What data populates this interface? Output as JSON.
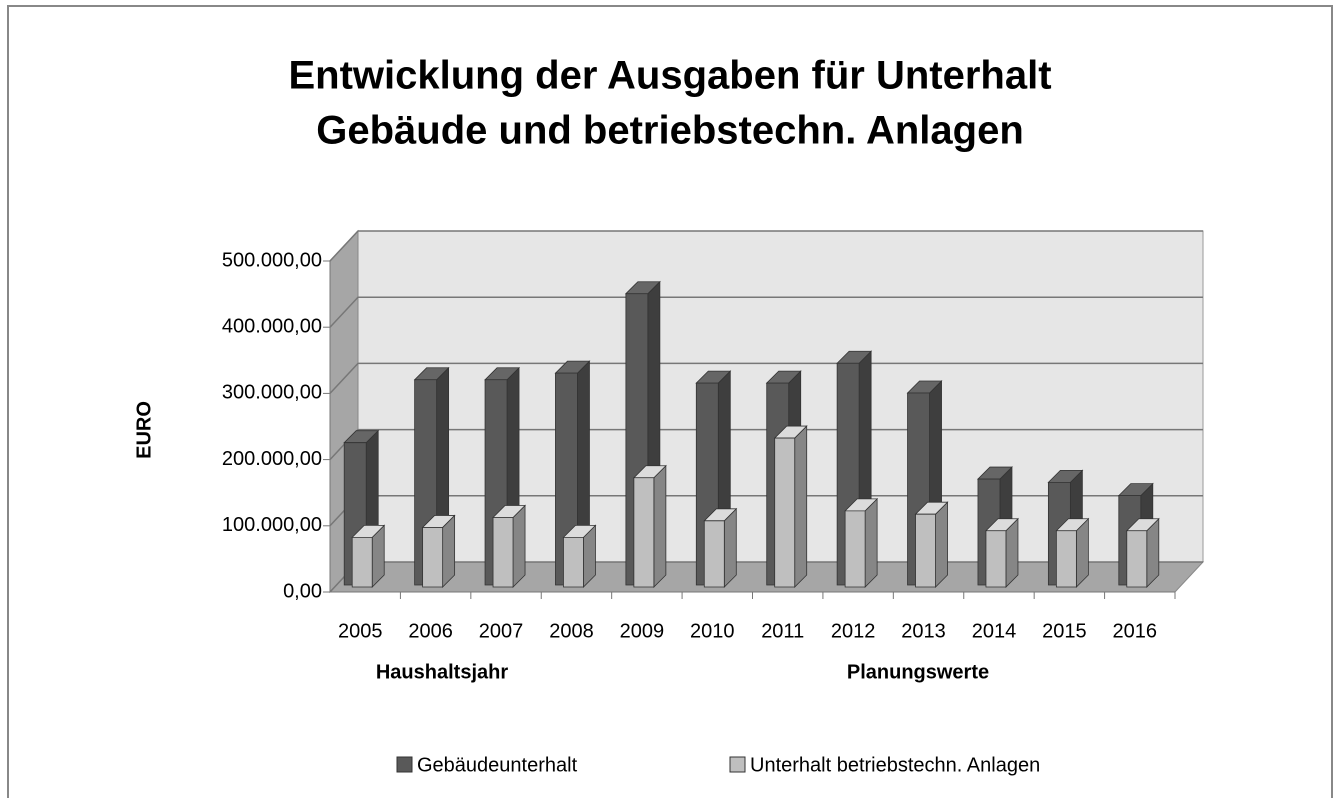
{
  "chart_data": {
    "type": "bar3d",
    "title": [
      "Entwicklung der Ausgaben für Unterhalt",
      "Gebäude und betriebstechn. Anlagen"
    ],
    "y_label": "EURO",
    "annotations": [
      "Haushaltsjahr",
      "Planungswerte"
    ],
    "categories": [
      "2005",
      "2006",
      "2007",
      "2008",
      "2009",
      "2010",
      "2011",
      "2012",
      "2013",
      "2014",
      "2015",
      "2016"
    ],
    "series": [
      {
        "name": "Gebäudeunterhalt",
        "color": "#595959",
        "values": [
          215000,
          310000,
          310000,
          320000,
          440000,
          305000,
          305000,
          335000,
          290000,
          160000,
          155000,
          135000
        ]
      },
      {
        "name": "Unterhalt betriebstechn. Anlagen",
        "color": "#bfbfbf",
        "values": [
          75000,
          90000,
          105000,
          75000,
          165000,
          100000,
          225000,
          115000,
          110000,
          85000,
          85000,
          85000
        ]
      }
    ],
    "ylim": [
      0,
      500000
    ],
    "yticks": [
      {
        "value": 0,
        "label": "0,00"
      },
      {
        "value": 100000,
        "label": "100.000,00"
      },
      {
        "value": 200000,
        "label": "200.000,00"
      },
      {
        "value": 300000,
        "label": "300.000,00"
      },
      {
        "value": 400000,
        "label": "400.000,00"
      },
      {
        "value": 500000,
        "label": "500.000,00"
      }
    ],
    "grid": true,
    "legend": "bottom"
  }
}
